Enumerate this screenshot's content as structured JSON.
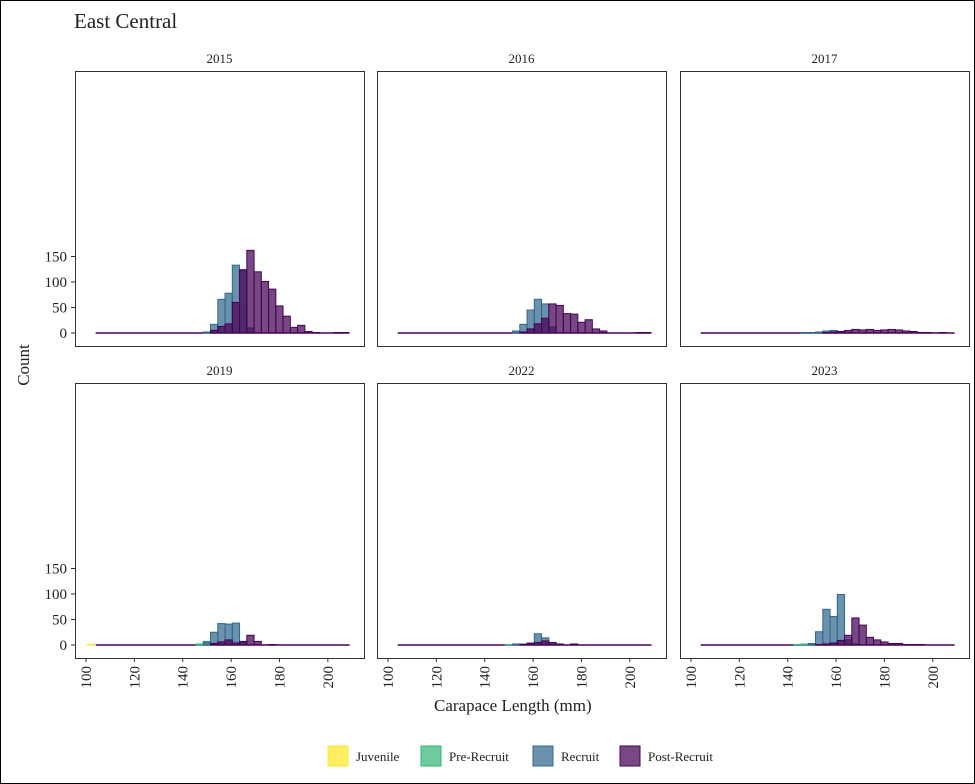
{
  "chart_data": {
    "type": "bar",
    "title": "East Central",
    "xlabel": "Carapace Length (mm)",
    "ylabel": "Count",
    "xlim": [
      100,
      210
    ],
    "ylim": [
      0,
      165
    ],
    "x_ticks": [
      "100",
      "120",
      "140",
      "160",
      "180",
      "200"
    ],
    "y_ticks": [
      "0",
      "50",
      "100",
      "150"
    ],
    "bin_width": 3,
    "legend": {
      "position": "bottom",
      "entries": [
        {
          "name": "Juvenile",
          "color": "#FDE725"
        },
        {
          "name": "Pre-Recruit",
          "color": "#35B779"
        },
        {
          "name": "Recruit",
          "color": "#31688E"
        },
        {
          "name": "Post-Recruit",
          "color": "#440154"
        }
      ]
    },
    "panels": [
      {
        "label": "2015",
        "series": [
          {
            "name": "Recruit",
            "x": [
              150,
              153,
              156,
              159,
              162,
              165,
              168
            ],
            "values": [
              2,
              17,
              66,
              78,
              133,
              124,
              10
            ]
          },
          {
            "name": "Post-Recruit",
            "x": [
              153,
              156,
              159,
              162,
              165,
              168,
              171,
              174,
              177,
              180,
              183,
              186,
              189,
              192,
              195,
              198,
              204,
              207
            ],
            "values": [
              5,
              13,
              18,
              60,
              124,
              162,
              120,
              101,
              86,
              53,
              33,
              11,
              15,
              3,
              1,
              0,
              1,
              1
            ]
          }
        ]
      },
      {
        "label": "2016",
        "series": [
          {
            "name": "Recruit",
            "x": [
              153,
              156,
              159,
              162,
              165,
              168
            ],
            "values": [
              4,
              17,
              45,
              66,
              57,
              12
            ]
          },
          {
            "name": "Post-Recruit",
            "x": [
              156,
              159,
              162,
              165,
              168,
              171,
              174,
              177,
              180,
              183,
              186,
              189,
              204,
              207
            ],
            "values": [
              2,
              8,
              18,
              29,
              57,
              54,
              38,
              37,
              21,
              26,
              8,
              4,
              1,
              1
            ]
          }
        ]
      },
      {
        "label": "2017",
        "series": [
          {
            "name": "Recruit",
            "x": [
              147,
              150,
              153,
              156,
              159,
              162,
              165
            ],
            "values": [
              1,
              1,
              2,
              4,
              5,
              3,
              1
            ]
          },
          {
            "name": "Post-Recruit",
            "x": [
              156,
              159,
              162,
              165,
              168,
              171,
              174,
              177,
              180,
              183,
              186,
              189,
              192,
              195,
              198,
              201,
              204
            ],
            "values": [
              1,
              2,
              3,
              5,
              7,
              6,
              7,
              5,
              6,
              7,
              6,
              4,
              3,
              1,
              1,
              0,
              1
            ]
          }
        ]
      },
      {
        "label": "2019",
        "series": [
          {
            "name": "Juvenile",
            "x": [
              102
            ],
            "values": [
              1
            ]
          },
          {
            "name": "Pre-Recruit",
            "x": [
              147,
              150
            ],
            "values": [
              2,
              7
            ]
          },
          {
            "name": "Recruit",
            "x": [
              150,
              153,
              156,
              159,
              162,
              165
            ],
            "values": [
              6,
              25,
              42,
              41,
              43,
              7
            ]
          },
          {
            "name": "Post-Recruit",
            "x": [
              153,
              156,
              159,
              162,
              165,
              168,
              171,
              177
            ],
            "values": [
              3,
              6,
              10,
              4,
              7,
              19,
              7,
              1
            ]
          }
        ]
      },
      {
        "label": "2022",
        "series": [
          {
            "name": "Pre-Recruit",
            "x": [
              150
            ],
            "values": [
              1
            ]
          },
          {
            "name": "Recruit",
            "x": [
              153,
              156,
              159,
              162,
              165,
              168
            ],
            "values": [
              2,
              2,
              4,
              22,
              14,
              2
            ]
          },
          {
            "name": "Post-Recruit",
            "x": [
              156,
              159,
              162,
              165,
              168,
              171,
              177
            ],
            "values": [
              1,
              3,
              5,
              8,
              5,
              2,
              2
            ]
          }
        ]
      },
      {
        "label": "2023",
        "series": [
          {
            "name": "Pre-Recruit",
            "x": [
              144,
              147,
              150
            ],
            "values": [
              1,
              2,
              1
            ]
          },
          {
            "name": "Recruit",
            "x": [
              150,
              153,
              156,
              159,
              162,
              165,
              168
            ],
            "values": [
              3,
              26,
              70,
              56,
              99,
              10,
              2
            ]
          },
          {
            "name": "Post-Recruit",
            "x": [
              153,
              156,
              159,
              162,
              165,
              168,
              171,
              174,
              177,
              180,
              183,
              186,
              189,
              192,
              195
            ],
            "values": [
              1,
              2,
              4,
              9,
              19,
              53,
              39,
              15,
              10,
              6,
              3,
              3,
              1,
              1,
              1
            ]
          }
        ]
      }
    ]
  }
}
